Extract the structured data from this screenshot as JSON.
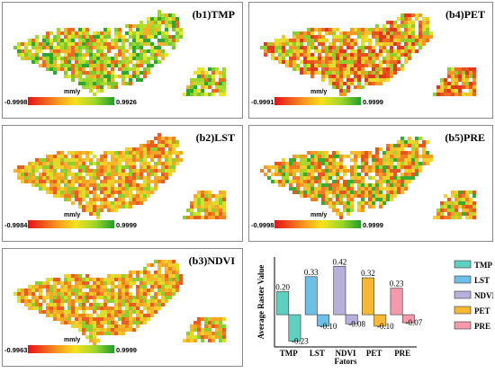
{
  "maps": [
    {
      "title": "(b1)TMP",
      "unit": "mm/y",
      "min": "-0.9998",
      "max": "0.9926",
      "tone": "green"
    },
    {
      "title": "(b4)PET",
      "unit": "mm/y",
      "min": "-0.9991",
      "max": "0.9999",
      "tone": "red"
    },
    {
      "title": "(b2)LST",
      "unit": "mm/y",
      "min": "-0.9984",
      "max": "0.9999",
      "tone": "orange"
    },
    {
      "title": "(b5)PRE",
      "unit": "mm/y",
      "min": "-0.9998",
      "max": "0.9999",
      "tone": "mixed"
    },
    {
      "title": "(b3)NDVI",
      "unit": "mm/y",
      "min": "-0.9963",
      "max": "0.9999",
      "tone": "orange"
    }
  ],
  "chart_data": {
    "type": "bar",
    "categories": [
      "TMP",
      "LST",
      "NDVI",
      "PET",
      "PRE"
    ],
    "series": [
      {
        "values": [
          0.2,
          0.33,
          0.42,
          0.32,
          0.23
        ]
      },
      {
        "values": [
          -0.23,
          -0.1,
          -0.08,
          -0.1,
          -0.07
        ]
      }
    ],
    "positive_labels": [
      "0.20",
      "0.33",
      "0.42",
      "0.32",
      "0.23"
    ],
    "negative_labels": [
      "-0.23",
      "-0.10",
      "-0.08",
      "-0.10",
      "-0.07"
    ],
    "colors": [
      "#5fcfc0",
      "#6cc0e8",
      "#b8b0dc",
      "#f7b934",
      "#f59aab"
    ],
    "xlabel": "Fators",
    "ylabel": "Average Raster Value",
    "ylim": [
      -0.28,
      0.5
    ],
    "legend": [
      "TMP",
      "LST",
      "NDVI",
      "PET",
      "PRE"
    ],
    "legend_position": "right"
  }
}
